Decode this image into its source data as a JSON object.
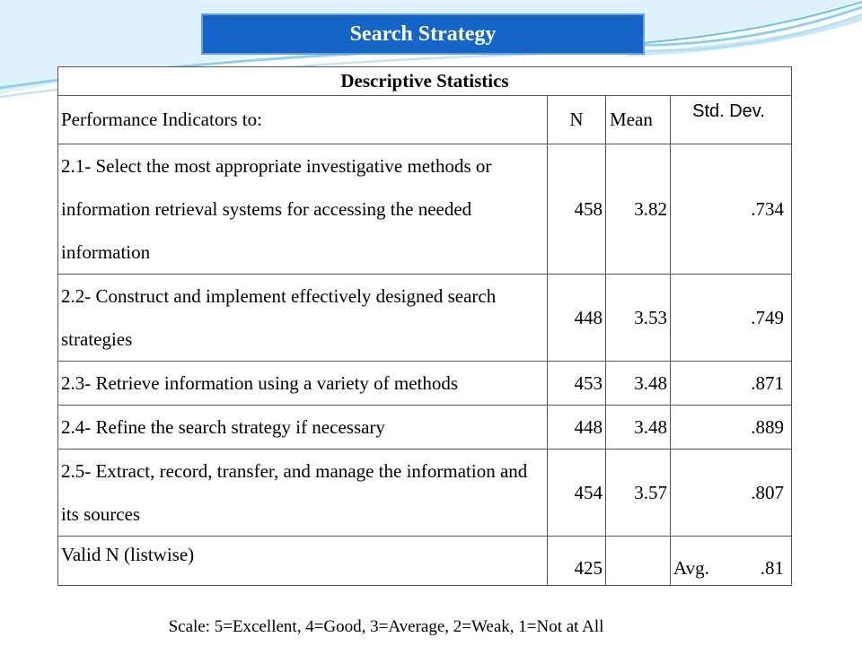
{
  "slide": {
    "title": "Search Strategy",
    "accent_color": "#1565c8",
    "swoosh_color": "#8fd0ee"
  },
  "table": {
    "caption": "Descriptive Statistics",
    "headers": {
      "indicator": "Performance Indicators to:",
      "n": "N",
      "mean": "Mean",
      "sd": "Std. Dev."
    },
    "rows": [
      {
        "label": "2.1- Select the most appropriate investigative methods or information retrieval systems for accessing the needed information",
        "n": "458",
        "mean": "3.82",
        "sd": ".734"
      },
      {
        "label": "2.2- Construct and implement effectively designed search strategies",
        "n": "448",
        "mean": "3.53",
        "sd": ".749"
      },
      {
        "label": "2.3- Retrieve information using a variety of methods",
        "n": "453",
        "mean": "3.48",
        "sd": ".871"
      },
      {
        "label": "2.4- Refine the search strategy if necessary",
        "n": "448",
        "mean": "3.48",
        "sd": ".889"
      },
      {
        "label": "2.5- Extract, record, transfer, and manage the information and its sources",
        "n": "454",
        "mean": "3.57",
        "sd": ".807"
      }
    ],
    "valid": {
      "label": "Valid N (listwise)",
      "n": "425",
      "avg_label": "Avg.",
      "avg_value": ".81"
    }
  },
  "scale_note": "Scale: 5=Excellent, 4=Good, 3=Average, 2=Weak, 1=Not at All"
}
